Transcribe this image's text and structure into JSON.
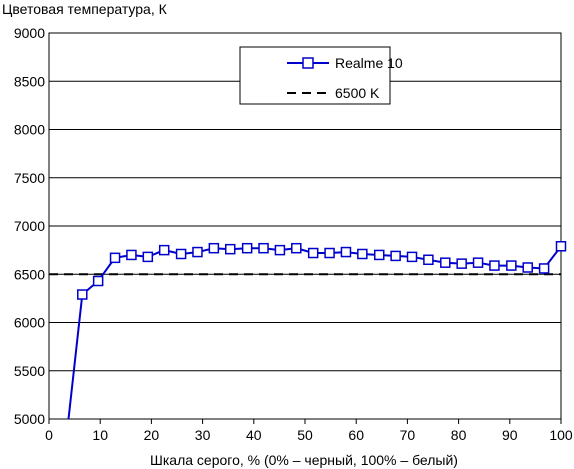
{
  "chart_data": {
    "type": "line",
    "title": "",
    "ylabel": "Цветовая температура, К",
    "xlabel": "Шкала серого, % (0% – черный, 100% – белый)",
    "xlim": [
      0,
      100
    ],
    "ylim": [
      5000,
      9000
    ],
    "xticks": [
      0,
      10,
      20,
      30,
      40,
      50,
      60,
      70,
      80,
      90,
      100
    ],
    "yticks": [
      5000,
      5500,
      6000,
      6500,
      7000,
      7500,
      8000,
      8500,
      9000
    ],
    "grid": "horizontal",
    "legend_position": "top-right",
    "series": [
      {
        "name": "Realme 10",
        "color": "#0000cc",
        "marker": "square-open",
        "line_start": [
          3.8,
          5000
        ],
        "x": [
          6.5,
          9.6,
          12.9,
          16.1,
          19.3,
          22.5,
          25.8,
          29.0,
          32.2,
          35.4,
          38.7,
          41.9,
          45.1,
          48.3,
          51.6,
          54.8,
          58.0,
          61.2,
          64.5,
          67.7,
          70.9,
          74.1,
          77.4,
          80.6,
          83.8,
          87.0,
          90.3,
          93.5,
          96.7,
          100
        ],
        "values": [
          6290,
          6430,
          6670,
          6700,
          6680,
          6750,
          6710,
          6730,
          6770,
          6760,
          6770,
          6770,
          6750,
          6770,
          6720,
          6720,
          6730,
          6710,
          6700,
          6690,
          6680,
          6650,
          6620,
          6610,
          6620,
          6590,
          6590,
          6570,
          6560,
          6790
        ]
      },
      {
        "name": "6500 K",
        "color": "#000000",
        "style": "dashed",
        "x": [
          0,
          100
        ],
        "values": [
          6500,
          6500
        ]
      }
    ]
  }
}
